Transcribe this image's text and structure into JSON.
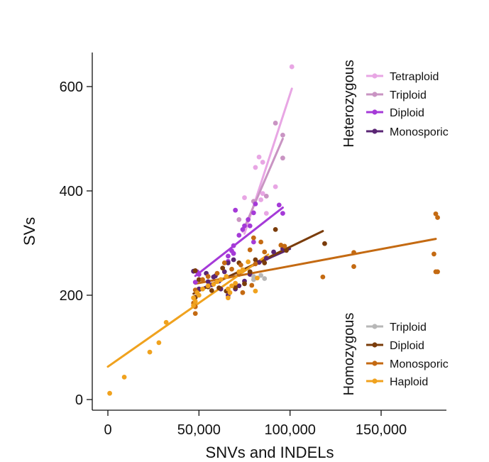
{
  "chart_data": {
    "type": "scatter",
    "xlabel": "SNVs and INDELs",
    "ylabel": "SVs",
    "xlim": [
      -5000,
      186000
    ],
    "ylim": [
      -12,
      665
    ],
    "x_ticks": [
      0,
      50000,
      100000,
      150000
    ],
    "x_tick_labels": [
      "0",
      "50,000",
      "100,000",
      "150,000"
    ],
    "y_ticks": [
      0,
      200,
      400,
      600
    ],
    "y_tick_labels": [
      "0",
      "200",
      "400",
      "600"
    ],
    "grid": false,
    "legend_placement": "right",
    "legends": [
      {
        "title": "Heterozygous",
        "entries": [
          {
            "name": "Tetraploid",
            "color": "#e8a6e4"
          },
          {
            "name": "Triploid",
            "color": "#c994c3"
          },
          {
            "name": "Diploid",
            "color": "#a53ad8"
          },
          {
            "name": "Monosporic",
            "color": "#5a2574"
          }
        ]
      },
      {
        "title": "Homozygous",
        "entries": [
          {
            "name": "Triploid",
            "color": "#b7b7b7"
          },
          {
            "name": "Diploid",
            "color": "#7a3c0a"
          },
          {
            "name": "Monosporic",
            "color": "#c46a12"
          },
          {
            "name": "Haploid",
            "color": "#f0a21e"
          }
        ]
      }
    ],
    "series": [
      {
        "group": "Heterozygous",
        "name": "Tetraploid",
        "color": "#e8a6e4",
        "points": [
          [
            101000,
            638
          ],
          [
            83000,
            465
          ],
          [
            85000,
            455
          ],
          [
            81000,
            445
          ],
          [
            92000,
            408
          ],
          [
            85000,
            395
          ],
          [
            75000,
            387
          ],
          [
            87000,
            357
          ],
          [
            84000,
            383
          ]
        ],
        "fit": [
          [
            75000,
            318
          ],
          [
            101000,
            596
          ]
        ]
      },
      {
        "group": "Heterozygous",
        "name": "Triploid",
        "color": "#c994c3",
        "points": [
          [
            92000,
            530
          ],
          [
            96000,
            507
          ],
          [
            96000,
            463
          ],
          [
            87000,
            390
          ],
          [
            80000,
            380
          ],
          [
            72000,
            345
          ]
        ],
        "fit": [
          [
            74000,
            322
          ],
          [
            96000,
            500
          ]
        ]
      },
      {
        "group": "Heterozygous",
        "name": "Diploid",
        "color": "#a53ad8",
        "points": [
          [
            70000,
            363
          ],
          [
            94000,
            373
          ],
          [
            96000,
            357
          ],
          [
            81000,
            375
          ],
          [
            80000,
            358
          ],
          [
            77000,
            345
          ],
          [
            75000,
            333
          ],
          [
            74000,
            326
          ],
          [
            72000,
            315
          ],
          [
            78000,
            333
          ],
          [
            80000,
            302
          ],
          [
            69000,
            295
          ],
          [
            68000,
            285
          ],
          [
            69000,
            280
          ],
          [
            66000,
            275
          ],
          [
            66000,
            265
          ],
          [
            49000,
            245
          ],
          [
            50000,
            240
          ],
          [
            48000,
            225
          ]
        ],
        "fit": [
          [
            48000,
            237
          ],
          [
            96000,
            368
          ]
        ]
      },
      {
        "group": "Heterozygous",
        "name": "Monosporic",
        "color": "#5a2574",
        "points": [
          [
            69000,
            268
          ],
          [
            66000,
            262
          ],
          [
            64000,
            245
          ],
          [
            58000,
            235
          ],
          [
            54000,
            242
          ],
          [
            55000,
            226
          ],
          [
            57000,
            220
          ],
          [
            59000,
            237
          ],
          [
            61000,
            227
          ],
          [
            62000,
            212
          ],
          [
            66000,
            200
          ],
          [
            70000,
            212
          ],
          [
            72000,
            218
          ],
          [
            75000,
            227
          ],
          [
            78000,
            240
          ],
          [
            83000,
            263
          ],
          [
            87000,
            271
          ],
          [
            91000,
            283
          ],
          [
            96000,
            289
          ],
          [
            47000,
            246
          ],
          [
            50000,
            212
          ]
        ],
        "fit": [
          [
            51000,
            212
          ],
          [
            100000,
            289
          ]
        ]
      },
      {
        "group": "Homozygous",
        "name": "Triploid",
        "color": "#b7b7b7",
        "points": [
          [
            80000,
            236
          ],
          [
            84000,
            238
          ],
          [
            86000,
            232
          ],
          [
            80000,
            230
          ]
        ],
        "fit": null
      },
      {
        "group": "Homozygous",
        "name": "Diploid",
        "color": "#7a3c0a",
        "points": [
          [
            92000,
            326
          ],
          [
            119000,
            299
          ],
          [
            63000,
            252
          ],
          [
            72000,
            262
          ],
          [
            81000,
            268
          ],
          [
            48000,
            247
          ],
          [
            50000,
            230
          ],
          [
            55000,
            216
          ],
          [
            57000,
            209
          ],
          [
            61000,
            214
          ],
          [
            65000,
            208
          ],
          [
            70000,
            215
          ],
          [
            75000,
            222
          ],
          [
            78000,
            245
          ],
          [
            86000,
            262
          ],
          [
            98000,
            286
          ],
          [
            48000,
            196
          ]
        ],
        "fit": [
          [
            47000,
            203
          ],
          [
            118000,
            323
          ]
        ]
      },
      {
        "group": "Homozygous",
        "name": "Monosporic",
        "color": "#c46a12",
        "points": [
          [
            180000,
            356
          ],
          [
            181000,
            349
          ],
          [
            179000,
            279
          ],
          [
            180000,
            245
          ],
          [
            181000,
            245
          ],
          [
            135000,
            282
          ],
          [
            135000,
            255
          ],
          [
            118000,
            235
          ],
          [
            95000,
            296
          ],
          [
            97000,
            294
          ],
          [
            80000,
            310
          ],
          [
            84000,
            302
          ],
          [
            78000,
            287
          ],
          [
            86000,
            283
          ],
          [
            81000,
            260
          ],
          [
            73000,
            258
          ],
          [
            68000,
            250
          ],
          [
            64000,
            262
          ],
          [
            72000,
            240
          ],
          [
            60000,
            242
          ],
          [
            55000,
            236
          ],
          [
            52000,
            230
          ],
          [
            48000,
            210
          ],
          [
            47000,
            185
          ],
          [
            48000,
            178
          ],
          [
            48000,
            165
          ],
          [
            74000,
            205
          ],
          [
            79000,
            219
          ]
        ],
        "fit": [
          [
            48000,
            222
          ],
          [
            180000,
            308
          ]
        ]
      },
      {
        "group": "Homozygous",
        "name": "Haploid",
        "color": "#f0a21e",
        "points": [
          [
            1000,
            12
          ],
          [
            9000,
            43
          ],
          [
            23000,
            91
          ],
          [
            28000,
            109
          ],
          [
            32000,
            148
          ],
          [
            47000,
            195
          ],
          [
            48000,
            188
          ],
          [
            49000,
            205
          ],
          [
            50000,
            200
          ],
          [
            52000,
            212
          ],
          [
            55000,
            218
          ],
          [
            58000,
            221
          ],
          [
            60000,
            226
          ],
          [
            62000,
            230
          ],
          [
            65000,
            236
          ],
          [
            66000,
            212
          ],
          [
            68000,
            218
          ],
          [
            70000,
            223
          ],
          [
            72000,
            245
          ],
          [
            74000,
            249
          ],
          [
            77000,
            264
          ],
          [
            81000,
            208
          ],
          [
            82000,
            233
          ],
          [
            67000,
            205
          ],
          [
            66000,
            195
          ],
          [
            47000,
            180
          ]
        ],
        "fit": [
          [
            0,
            63
          ],
          [
            88000,
            278
          ]
        ]
      }
    ]
  }
}
